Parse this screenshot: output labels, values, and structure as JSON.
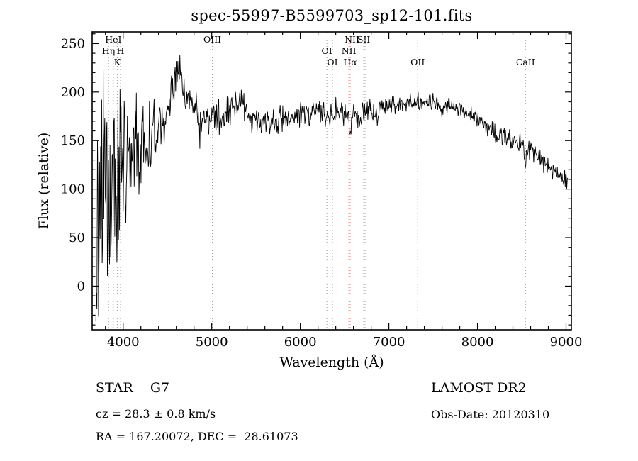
{
  "chart_data": {
    "type": "line",
    "title": "spec-55997-B5599703_sp12-101.fits",
    "xlabel": "Wavelength (Å)",
    "ylabel": "Flux (relative)",
    "xlim": [
      3650,
      9060
    ],
    "ylim": [
      -45,
      262
    ],
    "xticks": [
      4000,
      5000,
      6000,
      7000,
      8000,
      9000
    ],
    "x_minor_step": 200,
    "yticks": [
      0,
      50,
      100,
      150,
      200,
      250
    ],
    "y_minor_step": 10,
    "grid": false,
    "legend": "none",
    "frame_color": "#000000",
    "line_color": "#000000",
    "marker_colors": {
      "default": "#9a9a9a",
      "halpha": "#dd7777"
    },
    "line_markers": [
      {
        "label": "HeI",
        "x": 3889,
        "row": 1,
        "color": "default"
      },
      {
        "label": "Hη",
        "x": 3835,
        "row": 2,
        "color": "default"
      },
      {
        "label": "H",
        "x": 3970,
        "row": 2,
        "color": "default"
      },
      {
        "label": "K",
        "x": 3933,
        "row": 3,
        "color": "default"
      },
      {
        "label": "OIII",
        "x": 5007,
        "row": 1,
        "color": "default"
      },
      {
        "label": "OI",
        "x": 6300,
        "row": 2,
        "color": "default"
      },
      {
        "label": "OI",
        "x": 6363,
        "row": 3,
        "color": "default"
      },
      {
        "label": "NII",
        "x": 6548,
        "row": 2,
        "color": "halpha"
      },
      {
        "label": "Hα",
        "x": 6563,
        "row": 3,
        "color": "halpha"
      },
      {
        "label": "NII",
        "x": 6583,
        "row": 1,
        "color": "halpha"
      },
      {
        "label": "SII",
        "x": 6716,
        "row": 1,
        "color": "default"
      },
      {
        "label": "",
        "x": 6731,
        "row": 1,
        "color": "default"
      },
      {
        "label": "OII",
        "x": 7325,
        "row": 3,
        "color": "default"
      },
      {
        "label": "CaII",
        "x": 8542,
        "row": 3,
        "color": "default"
      }
    ],
    "series": [
      {
        "name": "spectrum",
        "seed": 11,
        "points": 900,
        "x_start": 3692,
        "x_end": 9020,
        "continuum_x": [
          3692,
          3750,
          3800,
          3850,
          3900,
          3950,
          4000,
          4100,
          4200,
          4300,
          4400,
          4500,
          4600,
          4650,
          4700,
          4800,
          4900,
          5000,
          5100,
          5200,
          5300,
          5350,
          5400,
          5500,
          5600,
          5700,
          5800,
          5900,
          6000,
          6100,
          6200,
          6300,
          6400,
          6500,
          6600,
          6700,
          6800,
          6900,
          7000,
          7100,
          7200,
          7300,
          7400,
          7500,
          7600,
          7700,
          7800,
          7900,
          8000,
          8100,
          8200,
          8300,
          8400,
          8500,
          8600,
          8700,
          8800,
          8900,
          9000,
          9020
        ],
        "continuum_y": [
          40,
          80,
          100,
          110,
          115,
          120,
          125,
          132,
          140,
          150,
          162,
          185,
          215,
          220,
          195,
          182,
          174,
          170,
          176,
          182,
          188,
          190,
          178,
          172,
          170,
          168,
          172,
          175,
          176,
          178,
          180,
          178,
          180,
          178,
          175,
          178,
          182,
          185,
          186,
          188,
          190,
          190,
          192,
          190,
          188,
          185,
          183,
          178,
          172,
          165,
          158,
          152,
          150,
          145,
          140,
          132,
          122,
          115,
          110,
          105
        ],
        "noise_x": [
          3692,
          3750,
          3800,
          3900,
          4000,
          4100,
          4200,
          4300,
          4400,
          4600,
          4800,
          5000,
          5300,
          5600,
          6000,
          6500,
          7000,
          7500,
          8000,
          8500,
          9000,
          9020
        ],
        "noise_amp": [
          85,
          90,
          80,
          70,
          55,
          45,
          38,
          28,
          20,
          16,
          13,
          12,
          13,
          11,
          10,
          9,
          7,
          6,
          7,
          8,
          7,
          6
        ],
        "clamp": [
          -36,
          246
        ],
        "dips": [
          {
            "x": 3933,
            "depth": 35,
            "width": 10
          },
          {
            "x": 4861,
            "depth": 22,
            "width": 8
          },
          {
            "x": 6563,
            "depth": 22,
            "width": 7
          },
          {
            "x": 6870,
            "depth": 18,
            "width": 14
          },
          {
            "x": 7600,
            "depth": 12,
            "width": 12
          },
          {
            "x": 8542,
            "depth": 15,
            "width": 9
          }
        ]
      }
    ]
  },
  "annotations": {
    "class_label": "STAR    G7",
    "survey": "LAMOST DR2",
    "cz": "cz = 28.3 ± 0.8 km/s",
    "obs_date": "Obs-Date: 20120310",
    "coords": "RA = 167.20072, DEC =  28.61073"
  }
}
